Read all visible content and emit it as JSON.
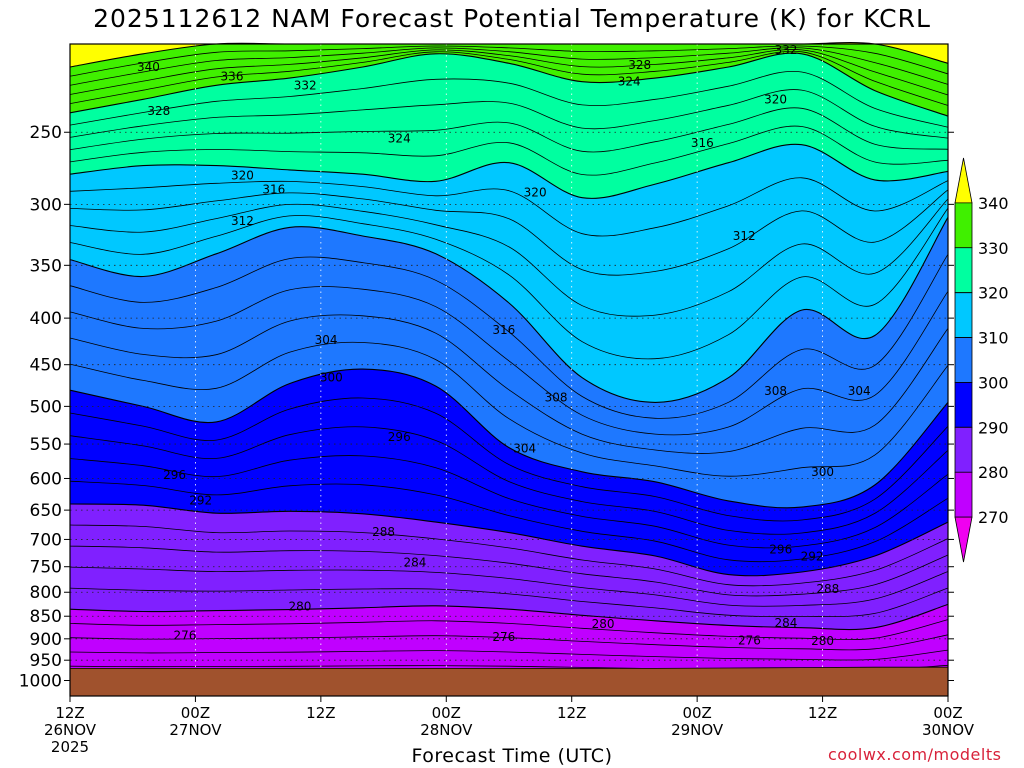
{
  "chart_data": {
    "type": "heatmap",
    "title": "2025112612 NAM Forecast Potential Temperature (K) for KCRL",
    "xlabel": "Forecast Time (UTC)",
    "ylabel": "",
    "credit": "coolwx.com/modelts",
    "x_range_hours": [
      0,
      84
    ],
    "x_ticks": [
      {
        "hour": 0,
        "labels": [
          "12Z",
          "26NOV",
          "2025"
        ]
      },
      {
        "hour": 12,
        "labels": [
          "00Z",
          "27NOV"
        ]
      },
      {
        "hour": 24,
        "labels": [
          "12Z"
        ]
      },
      {
        "hour": 36,
        "labels": [
          "00Z",
          "28NOV"
        ]
      },
      {
        "hour": 48,
        "labels": [
          "12Z"
        ]
      },
      {
        "hour": 60,
        "labels": [
          "00Z",
          "29NOV"
        ]
      },
      {
        "hour": 72,
        "labels": [
          "12Z"
        ]
      },
      {
        "hour": 84,
        "labels": [
          "00Z",
          "30NOV"
        ]
      }
    ],
    "y_axis": {
      "scale": "log",
      "reversed": true,
      "range_hpa": [
        1040,
        200
      ],
      "ticks": [
        250,
        300,
        350,
        400,
        450,
        500,
        550,
        600,
        650,
        700,
        750,
        800,
        850,
        900,
        950,
        1000
      ]
    },
    "grid": true,
    "colorbar": {
      "placement": "right",
      "levels": [
        270,
        280,
        290,
        300,
        310,
        320,
        330,
        340
      ],
      "colors": [
        "#f000f0",
        "#c000ff",
        "#8020ff",
        "#0000ff",
        "#1e78ff",
        "#00c8ff",
        "#00ffa0",
        "#40f000",
        "#ffff00"
      ]
    },
    "surface_color": "#a0522d",
    "surface_pressure_hpa": [
      970,
      970,
      970,
      970,
      970,
      970,
      970,
      970,
      970,
      969,
      968,
      967,
      967
    ],
    "series": [
      {
        "theta": 270,
        "pressure_hpa": [
          1000,
          1000,
          1000,
          1000,
          1000,
          1000,
          1000,
          1000,
          1000,
          1000,
          1000,
          1000,
          1000
        ]
      },
      {
        "theta": 280,
        "pressure_hpa": [
          835,
          840,
          838,
          836,
          832,
          828,
          835,
          848,
          860,
          870,
          875,
          875,
          825
        ]
      },
      {
        "theta": 290,
        "pressure_hpa": [
          640,
          642,
          655,
          652,
          656,
          670,
          688,
          712,
          730,
          765,
          760,
          730,
          670
        ]
      },
      {
        "theta": 300,
        "pressure_hpa": [
          480,
          500,
          520,
          472,
          455,
          475,
          555,
          590,
          605,
          635,
          645,
          610,
          495
        ]
      },
      {
        "theta": 310,
        "pressure_hpa": [
          345,
          360,
          340,
          318,
          325,
          340,
          385,
          465,
          495,
          465,
          392,
          418,
          310
        ]
      },
      {
        "theta": 320,
        "pressure_hpa": [
          278,
          272,
          272,
          275,
          278,
          283,
          270,
          295,
          285,
          270,
          258,
          282,
          276
        ]
      },
      {
        "theta": 330,
        "pressure_hpa": [
          238,
          230,
          222,
          218,
          212,
          205,
          210,
          220,
          218,
          212,
          205,
          225,
          240
        ]
      },
      {
        "theta": 340,
        "pressure_hpa": [
          212,
          205,
          200,
          200,
          200,
          200,
          200,
          200,
          200,
          200,
          200,
          200,
          210
        ]
      }
    ],
    "contour_labels": [
      {
        "text": "340",
        "hour": 7.5,
        "pressure_hpa": 212
      },
      {
        "text": "336",
        "hour": 15.5,
        "pressure_hpa": 217
      },
      {
        "text": "332",
        "hour": 22.5,
        "pressure_hpa": 222
      },
      {
        "text": "328",
        "hour": 8.5,
        "pressure_hpa": 237
      },
      {
        "text": "328",
        "hour": 54.5,
        "pressure_hpa": 211
      },
      {
        "text": "324",
        "hour": 53.5,
        "pressure_hpa": 220
      },
      {
        "text": "332",
        "hour": 68.5,
        "pressure_hpa": 203
      },
      {
        "text": "320",
        "hour": 67.5,
        "pressure_hpa": 230
      },
      {
        "text": "324",
        "hour": 31.5,
        "pressure_hpa": 254
      },
      {
        "text": "316",
        "hour": 60.5,
        "pressure_hpa": 257
      },
      {
        "text": "320",
        "hour": 16.5,
        "pressure_hpa": 279
      },
      {
        "text": "316",
        "hour": 19.5,
        "pressure_hpa": 289
      },
      {
        "text": "320",
        "hour": 44.5,
        "pressure_hpa": 291
      },
      {
        "text": "312",
        "hour": 16.5,
        "pressure_hpa": 313
      },
      {
        "text": "312",
        "hour": 64.5,
        "pressure_hpa": 325
      },
      {
        "text": "304",
        "hour": 24.5,
        "pressure_hpa": 423
      },
      {
        "text": "316",
        "hour": 41.5,
        "pressure_hpa": 412
      },
      {
        "text": "300",
        "hour": 25.0,
        "pressure_hpa": 465
      },
      {
        "text": "308",
        "hour": 46.5,
        "pressure_hpa": 489
      },
      {
        "text": "308",
        "hour": 67.5,
        "pressure_hpa": 481
      },
      {
        "text": "304",
        "hour": 75.5,
        "pressure_hpa": 481
      },
      {
        "text": "296",
        "hour": 31.5,
        "pressure_hpa": 540
      },
      {
        "text": "304",
        "hour": 43.5,
        "pressure_hpa": 556
      },
      {
        "text": "296",
        "hour": 10.0,
        "pressure_hpa": 595
      },
      {
        "text": "300",
        "hour": 72.0,
        "pressure_hpa": 590
      },
      {
        "text": "292",
        "hour": 12.5,
        "pressure_hpa": 634
      },
      {
        "text": "288",
        "hour": 30.0,
        "pressure_hpa": 687
      },
      {
        "text": "296",
        "hour": 68.0,
        "pressure_hpa": 718
      },
      {
        "text": "292",
        "hour": 71.0,
        "pressure_hpa": 731
      },
      {
        "text": "284",
        "hour": 33.0,
        "pressure_hpa": 742
      },
      {
        "text": "288",
        "hour": 72.5,
        "pressure_hpa": 793
      },
      {
        "text": "280",
        "hour": 22.0,
        "pressure_hpa": 829
      },
      {
        "text": "280",
        "hour": 51.0,
        "pressure_hpa": 867
      },
      {
        "text": "284",
        "hour": 68.5,
        "pressure_hpa": 865
      },
      {
        "text": "276",
        "hour": 11.0,
        "pressure_hpa": 893
      },
      {
        "text": "276",
        "hour": 41.5,
        "pressure_hpa": 896
      },
      {
        "text": "276",
        "hour": 65.0,
        "pressure_hpa": 904
      },
      {
        "text": "280",
        "hour": 72.0,
        "pressure_hpa": 905
      }
    ]
  }
}
